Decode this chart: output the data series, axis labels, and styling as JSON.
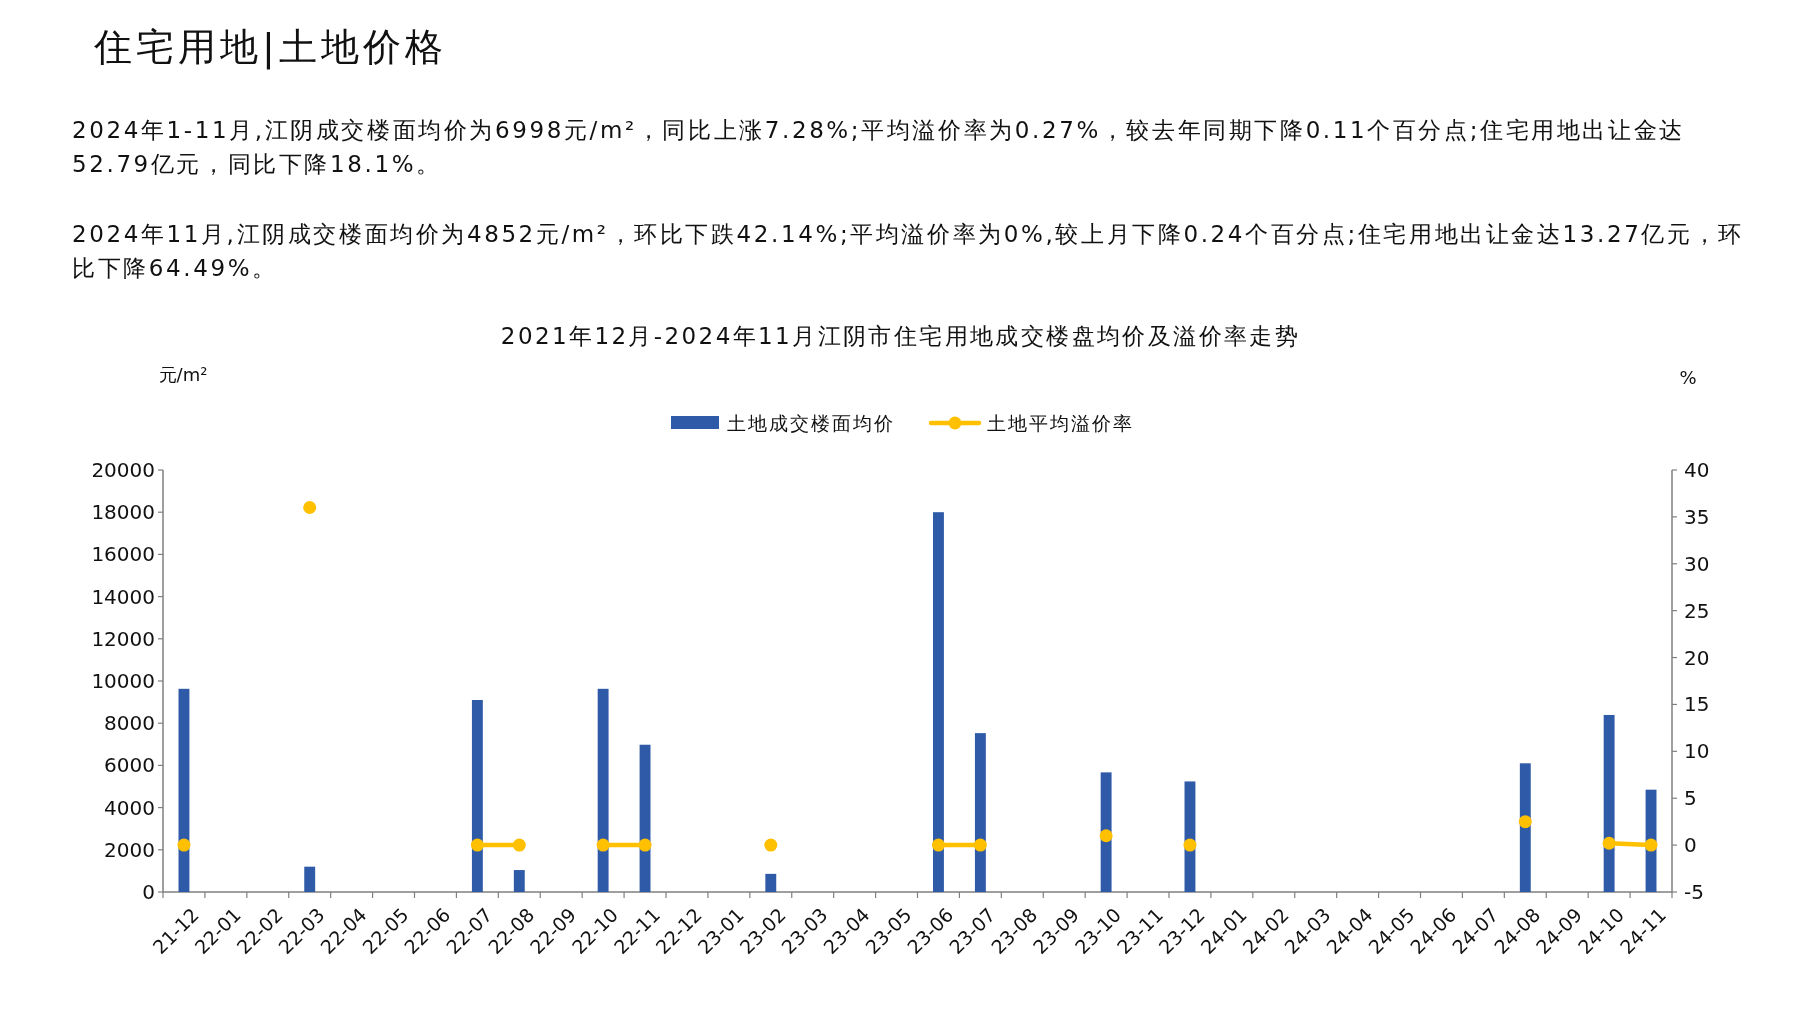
{
  "chart_data": {
    "type": "bar",
    "title": "2021年12月-2024年11月江阴市住宅用地成交楼盘均价及溢价率走势",
    "annotations": [
      "住宅用地|土地价格",
      "2024年1-11月,江阴成交楼面均价为6998元/m²，同比上涨7.28%;平均溢价率为0.27%，较去年同期下降0.11个百分点;住宅用地出让金达52.79亿元，同比下降18.1%。",
      "2024年11月,江阴成交楼面均价为4852元/m²，环比下跌42.14%;平均溢价率为0%,较上月下降0.24个百分点;住宅用地出让金达13.27亿元，环比下降64.49%。"
    ],
    "ylabel": "元/m²",
    "y2label": "%",
    "categories": [
      "21-12",
      "22-01",
      "22-02",
      "22-03",
      "22-04",
      "22-05",
      "22-06",
      "22-07",
      "22-08",
      "22-09",
      "22-10",
      "22-11",
      "22-12",
      "23-01",
      "23-02",
      "23-03",
      "23-04",
      "23-05",
      "23-06",
      "23-07",
      "23-08",
      "23-09",
      "23-10",
      "23-11",
      "23-12",
      "24-01",
      "24-02",
      "24-03",
      "24-04",
      "24-05",
      "24-06",
      "24-07",
      "24-08",
      "24-09",
      "24-10",
      "24-11"
    ],
    "series": [
      {
        "name": "土地成交楼面均价",
        "color": "#2f5aa8",
        "values": [
          9630,
          null,
          null,
          1200,
          null,
          null,
          null,
          9100,
          1040,
          null,
          9630,
          6980,
          null,
          null,
          860,
          null,
          null,
          null,
          18000,
          7530,
          null,
          null,
          5670,
          null,
          5240,
          null,
          null,
          null,
          null,
          null,
          null,
          null,
          6100,
          null,
          8390,
          4850
        ]
      },
      {
        "name": "土地平均溢价率",
        "type": "line",
        "axis": "y2",
        "color": "#ffc000",
        "values": [
          0,
          null,
          null,
          36,
          null,
          null,
          null,
          0,
          0,
          null,
          0,
          0,
          null,
          null,
          0,
          null,
          null,
          null,
          0,
          0,
          null,
          null,
          1,
          null,
          0,
          null,
          null,
          null,
          null,
          null,
          null,
          null,
          2.5,
          null,
          0.2,
          0
        ]
      }
    ],
    "ylim": [
      0,
      20000
    ],
    "yticks": [
      0,
      2000,
      4000,
      6000,
      8000,
      10000,
      12000,
      14000,
      16000,
      18000,
      20000
    ],
    "y2lim": [
      -5,
      40
    ],
    "y2ticks": [
      -5,
      0,
      5,
      10,
      15,
      20,
      25,
      30,
      35,
      40
    ],
    "legend": "top",
    "marker": "circle",
    "line_style": "solid"
  }
}
